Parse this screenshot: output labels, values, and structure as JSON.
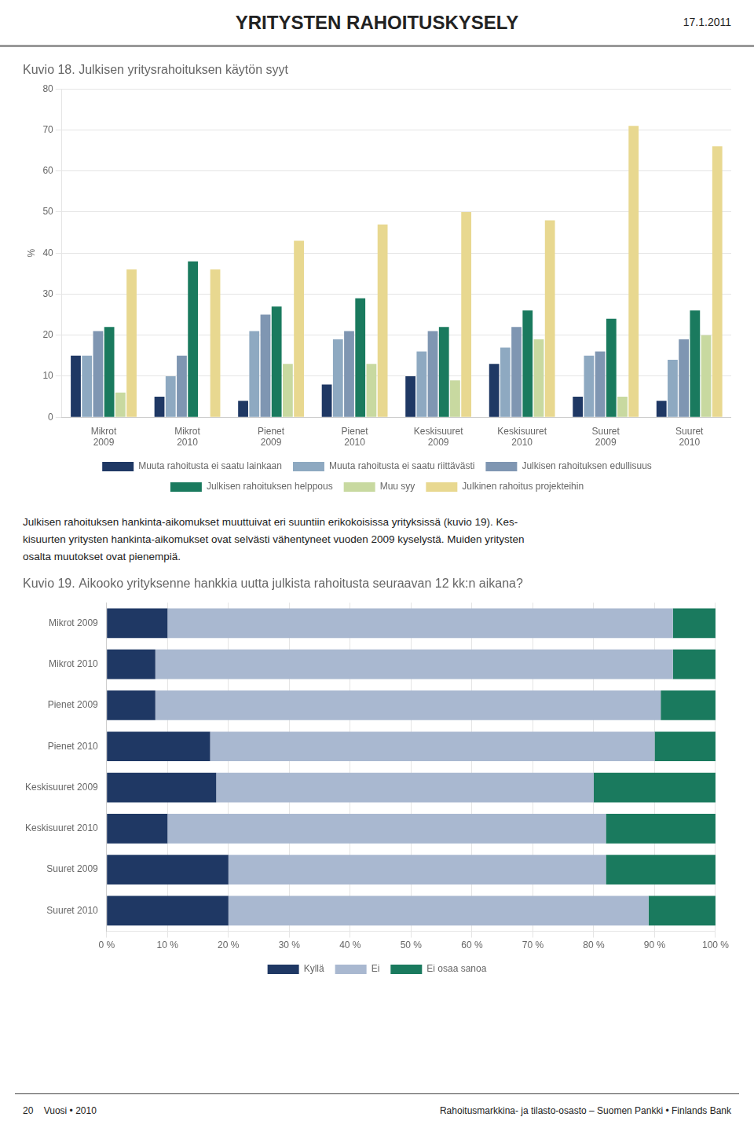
{
  "title": "YRITYSTEN RAHOITUSKYSELY",
  "subtitle": "17.1.2011",
  "annotations": [
    "Julkisen rahoituksen hankinta-aikomukset muuttuivat eri suuntiin erikokoisissa yrityksissä (kuvio 19). Kes-",
    "kisuurten yritysten hankinta-aikomukset ovat selvästi vähentyneet vuoden 2009 kyselystä. Muiden yritysten",
    "osalta muutokset ovat pienempiä."
  ],
  "footer": [
    "20    Vuosi • 2010",
    "Rahoitusmarkkina- ja tilasto-osasto – Suomen Pankki • Finlands Bank"
  ],
  "chart_data": [
    {
      "type": "bar",
      "title": "Kuvio 18. Julkisen yritysrahoituksen käytön syyt",
      "ylabel": "%",
      "categories": [
        "Mikrot\n2009",
        "Mikrot\n2010",
        "Pienet\n2009",
        "Pienet\n2010",
        "Keskisuuret\n2009",
        "Keskisuuret\n2010",
        "Suuret\n2009",
        "Suuret\n2010"
      ],
      "series": [
        {
          "name": "Muuta rahoitusta ei saatu lainkaan",
          "color": "#1F3864",
          "values": [
            15,
            5,
            4,
            8,
            10,
            13,
            5,
            4
          ]
        },
        {
          "name": "Muuta rahoitusta ei saatu riittävästi",
          "color": "#8EA9C1",
          "values": [
            15,
            10,
            21,
            19,
            16,
            17,
            15,
            14
          ]
        },
        {
          "name": "Julkisen rahoituksen edullisuus",
          "color": "#7F96B2",
          "values": [
            21,
            15,
            25,
            21,
            21,
            22,
            16,
            19
          ]
        },
        {
          "name": "Julkisen rahoituksen helppous",
          "color": "#1A7A5E",
          "values": [
            22,
            38,
            27,
            29,
            22,
            26,
            24,
            26
          ]
        },
        {
          "name": "Muu syy",
          "color": "#C8D9A0",
          "values": [
            6,
            0,
            13,
            13,
            9,
            19,
            5,
            20
          ]
        },
        {
          "name": "Julkinen rahoitus projekteihin",
          "color": "#E8D890",
          "values": [
            36,
            36,
            43,
            47,
            50,
            48,
            71,
            66
          ]
        }
      ],
      "ylim": [
        0,
        80
      ],
      "yticks": [
        0,
        10,
        20,
        30,
        40,
        50,
        60,
        70,
        80
      ],
      "grid": true,
      "legend": "bottom"
    },
    {
      "type": "bar",
      "title": "Kuvio 19. Aikooko yrityksenne hankkia uutta julkista rahoitusta seuraavan 12 kk:n aikana?",
      "orientation": "horizontal",
      "stacked": true,
      "categories": [
        "Mikrot 2009",
        "Mikrot 2010",
        "Pienet 2009",
        "Pienet 2010",
        "Keskisuuret 2009",
        "Keskisuuret 2010",
        "Suuret 2009",
        "Suuret 2010"
      ],
      "series": [
        {
          "name": "Kyllä",
          "color": "#1F3864",
          "values": [
            10,
            8,
            8,
            17,
            18,
            10,
            20,
            20
          ]
        },
        {
          "name": "Ei",
          "color": "#A9B8D0",
          "values": [
            83,
            85,
            83,
            73,
            62,
            72,
            62,
            69
          ]
        },
        {
          "name": "Ei osaa sanoa",
          "color": "#1A7A5E",
          "values": [
            7,
            7,
            9,
            10,
            20,
            18,
            18,
            11
          ]
        }
      ],
      "xlim": [
        0,
        100
      ],
      "xticks": [
        {
          "value": 0,
          "label": "0 %"
        },
        {
          "value": 10,
          "label": "10 %"
        },
        {
          "value": 20,
          "label": "20 %"
        },
        {
          "value": 30,
          "label": "30 %"
        },
        {
          "value": 40,
          "label": "40 %"
        },
        {
          "value": 50,
          "label": "50 %"
        },
        {
          "value": 60,
          "label": "60 %"
        },
        {
          "value": 70,
          "label": "70 %"
        },
        {
          "value": 80,
          "label": "80 %"
        },
        {
          "value": 90,
          "label": "90 %"
        },
        {
          "value": 100,
          "label": "100 %"
        }
      ],
      "grid": true,
      "legend": "bottom"
    }
  ]
}
